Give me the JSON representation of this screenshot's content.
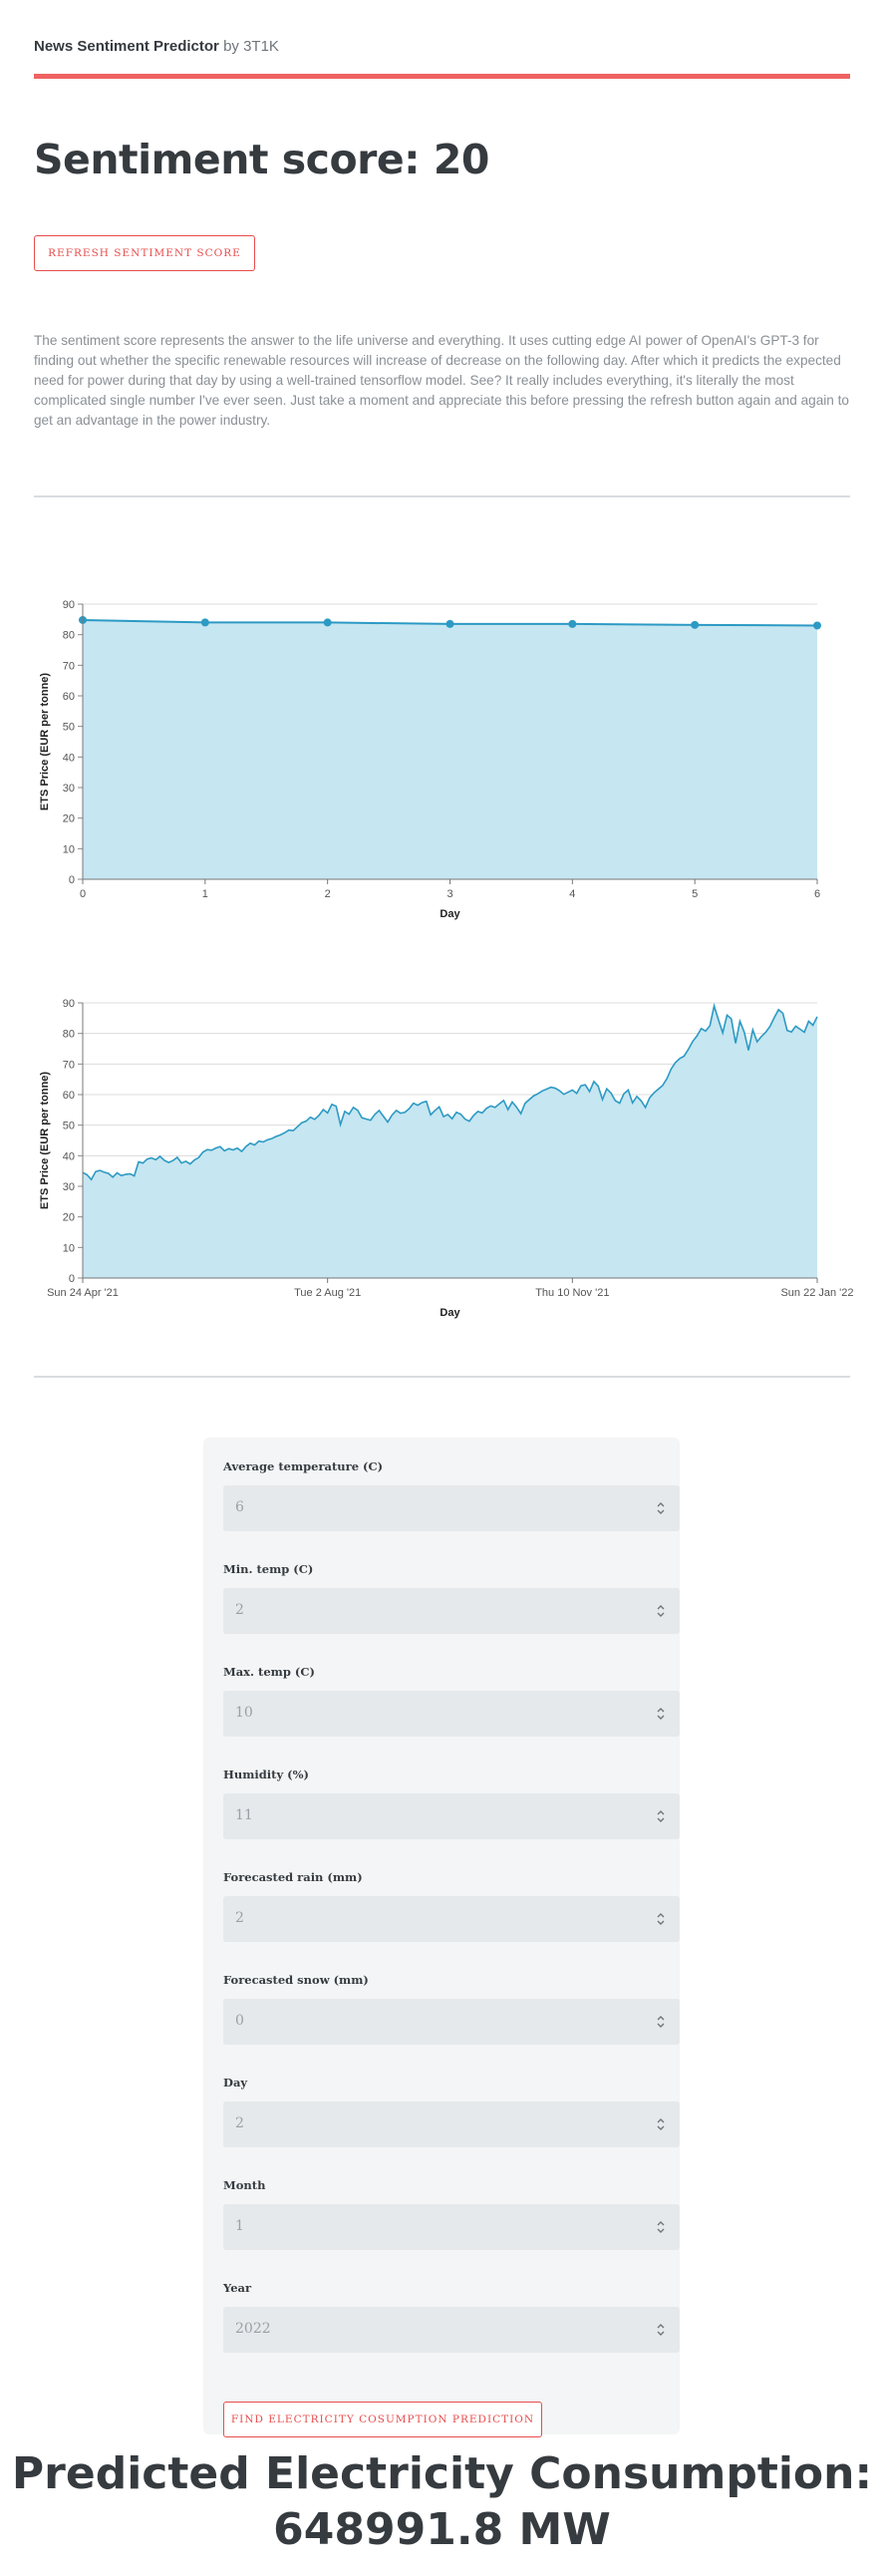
{
  "header": {
    "app_name": "News Sentiment Predictor",
    "by": "by 3T1K"
  },
  "sentiment": {
    "title": "Sentiment score: 20",
    "refresh_label": "REFRESH SENTIMENT SCORE",
    "description": "The sentiment score represents the answer to the life universe and everything. It uses cutting edge AI power of OpenAI's GPT-3 for finding out whether the specific renewable resources will increase of decrease on the following day. After which it predicts the expected need for power during that day by using a well-trained tensorflow model. See? It really includes everything, it's literally the most complicated single number I've ever seen. Just take a moment and appreciate this before pressing the refresh button again and again to get an advantage in the power industry."
  },
  "colors": {
    "accent": "#ef6262",
    "series_line": "#2c9ac4",
    "series_fill": "#c6e6f1"
  },
  "chart_data": [
    {
      "type": "area",
      "x": [
        0,
        1,
        2,
        3,
        4,
        5,
        6
      ],
      "values": [
        84.8,
        84.0,
        84.0,
        83.5,
        83.5,
        83.2,
        83.0
      ],
      "xlabel": "Day",
      "ylabel": "ETS Price (EUR per tonne)",
      "ylim": [
        0,
        90
      ],
      "yticks": [
        "0",
        "10",
        "20",
        "30",
        "40",
        "50",
        "60",
        "70",
        "80",
        "90"
      ],
      "xticks": [
        "0",
        "1",
        "2",
        "3",
        "4",
        "5",
        "6"
      ],
      "grid": true,
      "legend": "none"
    },
    {
      "type": "area",
      "x_range": [
        "2021-04-24",
        "2022-01-22"
      ],
      "values": [
        34.5,
        33.8,
        32.2,
        34.8,
        35.2,
        34.6,
        34.2,
        33.0,
        34.4,
        33.5,
        33.9,
        34.1,
        33.4,
        38.0,
        37.6,
        38.9,
        39.3,
        38.7,
        39.8,
        38.5,
        37.8,
        38.4,
        39.5,
        37.6,
        38.2,
        37.3,
        38.6,
        39.4,
        41.2,
        42.0,
        41.8,
        42.5,
        43.0,
        41.6,
        42.3,
        41.9,
        42.5,
        41.4,
        43.0,
        44.1,
        43.5,
        44.8,
        44.5,
        45.2,
        45.6,
        46.3,
        46.8,
        47.5,
        48.4,
        48.2,
        49.5,
        50.8,
        51.3,
        52.6,
        51.9,
        53.2,
        55.1,
        54.0,
        56.8,
        56.2,
        50.2,
        54.5,
        53.6,
        55.8,
        54.9,
        52.4,
        52.0,
        51.6,
        53.5,
        54.8,
        52.9,
        51.0,
        53.3,
        54.8,
        53.9,
        54.2,
        55.4,
        57.2,
        56.5,
        57.4,
        57.8,
        53.4,
        54.8,
        56.0,
        52.8,
        53.5,
        52.1,
        54.2,
        53.6,
        52.0,
        51.3,
        53.2,
        54.5,
        54.0,
        55.5,
        56.3,
        55.8,
        57.0,
        58.1,
        55.1,
        57.6,
        55.9,
        53.8,
        57.2,
        58.4,
        59.6,
        60.3,
        61.2,
        61.8,
        62.4,
        62.1,
        61.3,
        60.1,
        60.8,
        61.5,
        60.4,
        62.9,
        63.2,
        61.0,
        64.3,
        62.8,
        58.4,
        61.9,
        60.5,
        58.0,
        57.2,
        60.3,
        61.5,
        57.3,
        59.4,
        58.0,
        55.8,
        59.0,
        60.6,
        61.8,
        63.0,
        65.2,
        68.4,
        70.5,
        71.8,
        72.6,
        74.8,
        77.4,
        79.2,
        81.6,
        80.8,
        82.5,
        89.0,
        84.5,
        80.2,
        86.0,
        84.8,
        76.8,
        84.0,
        80.5,
        74.5,
        81.2,
        77.3,
        79.0,
        80.4,
        82.3,
        85.2,
        87.8,
        86.6,
        81.0,
        80.5,
        82.4,
        81.4,
        80.4,
        84.0,
        82.7,
        85.5
      ],
      "xlabel": "Day",
      "ylabel": "ETS Price (EUR per tonne)",
      "ylim": [
        0,
        90
      ],
      "yticks": [
        "0",
        "10",
        "20",
        "30",
        "40",
        "50",
        "60",
        "70",
        "80",
        "90"
      ],
      "xticks": [
        "Sun 24 Apr '21",
        "Tue 2 Aug '21",
        "Thu 10 Nov '21",
        "Sun 22 Jan '22"
      ],
      "grid": true,
      "legend": "none"
    }
  ],
  "form": {
    "fields": [
      {
        "label": "Average temperature (C)",
        "value": "6"
      },
      {
        "label": "Min. temp (C)",
        "value": "2"
      },
      {
        "label": "Max. temp (C)",
        "value": "10"
      },
      {
        "label": "Humidity (%)",
        "value": "11"
      },
      {
        "label": "Forecasted rain (mm)",
        "value": "2"
      },
      {
        "label": "Forecasted snow (mm)",
        "value": "0"
      },
      {
        "label": "Day",
        "value": "2"
      },
      {
        "label": "Month",
        "value": "1"
      },
      {
        "label": "Year",
        "value": "2022"
      }
    ],
    "submit_label": "FIND ELECTRICITY COSUMPTION PREDICTION"
  },
  "result": {
    "line1": "Predicted Electricity Consumption:",
    "line2": "648991.8 MW"
  }
}
